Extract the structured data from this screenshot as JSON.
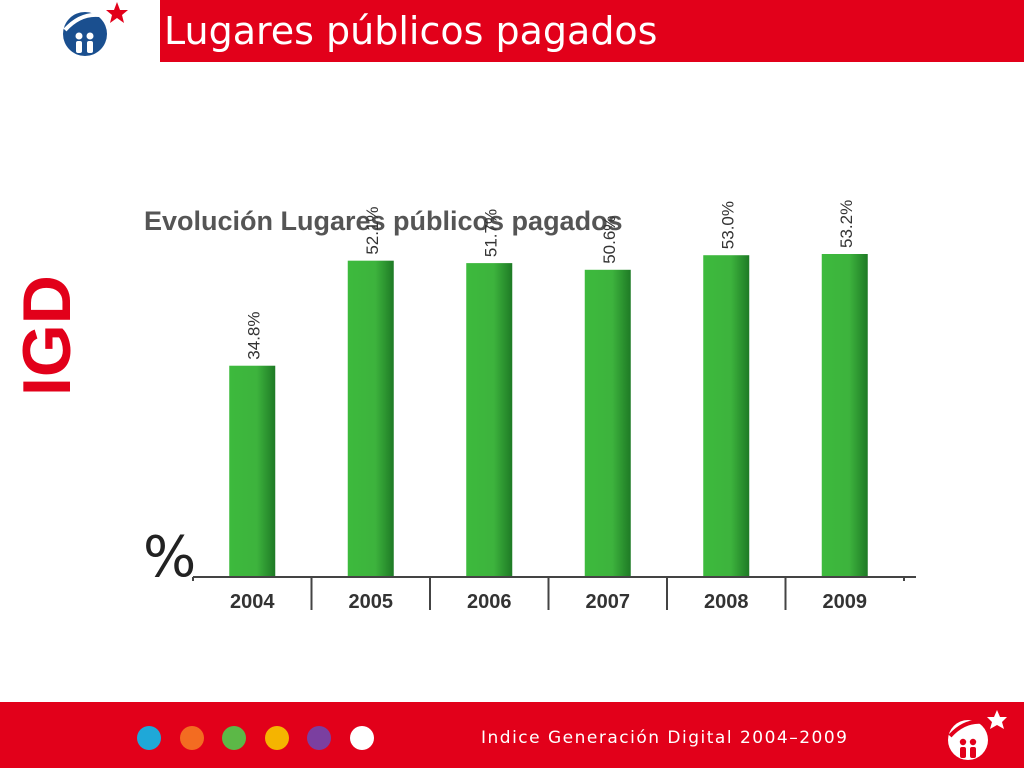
{
  "slide": {
    "title": "Lugares públicos pagados",
    "side_brand": "IGD",
    "footer_text": "Indice Generación Digital 2004–2009",
    "colors": {
      "brand_red": "#e2001a",
      "bar_green": "#3dba3d",
      "bar_green_dark": "#1e7a25"
    },
    "footer_dots": [
      "#1fa8d8",
      "#f36c21",
      "#5cb847",
      "#f5b400",
      "#7b3fa0",
      "#ffffff"
    ]
  },
  "chart_data": {
    "type": "bar",
    "title": "Evolución Lugares públicos pagados",
    "ylabel": "%",
    "categories": [
      "2004",
      "2005",
      "2006",
      "2007",
      "2008",
      "2009"
    ],
    "values": [
      34.8,
      52.1,
      51.7,
      50.6,
      53.0,
      53.2
    ],
    "value_labels": [
      "34.8%",
      "52.1%",
      "51.7%",
      "50.6%",
      "53.0%",
      "53.2%"
    ],
    "ylim": [
      0,
      70
    ],
    "grid": false,
    "legend": "none"
  }
}
